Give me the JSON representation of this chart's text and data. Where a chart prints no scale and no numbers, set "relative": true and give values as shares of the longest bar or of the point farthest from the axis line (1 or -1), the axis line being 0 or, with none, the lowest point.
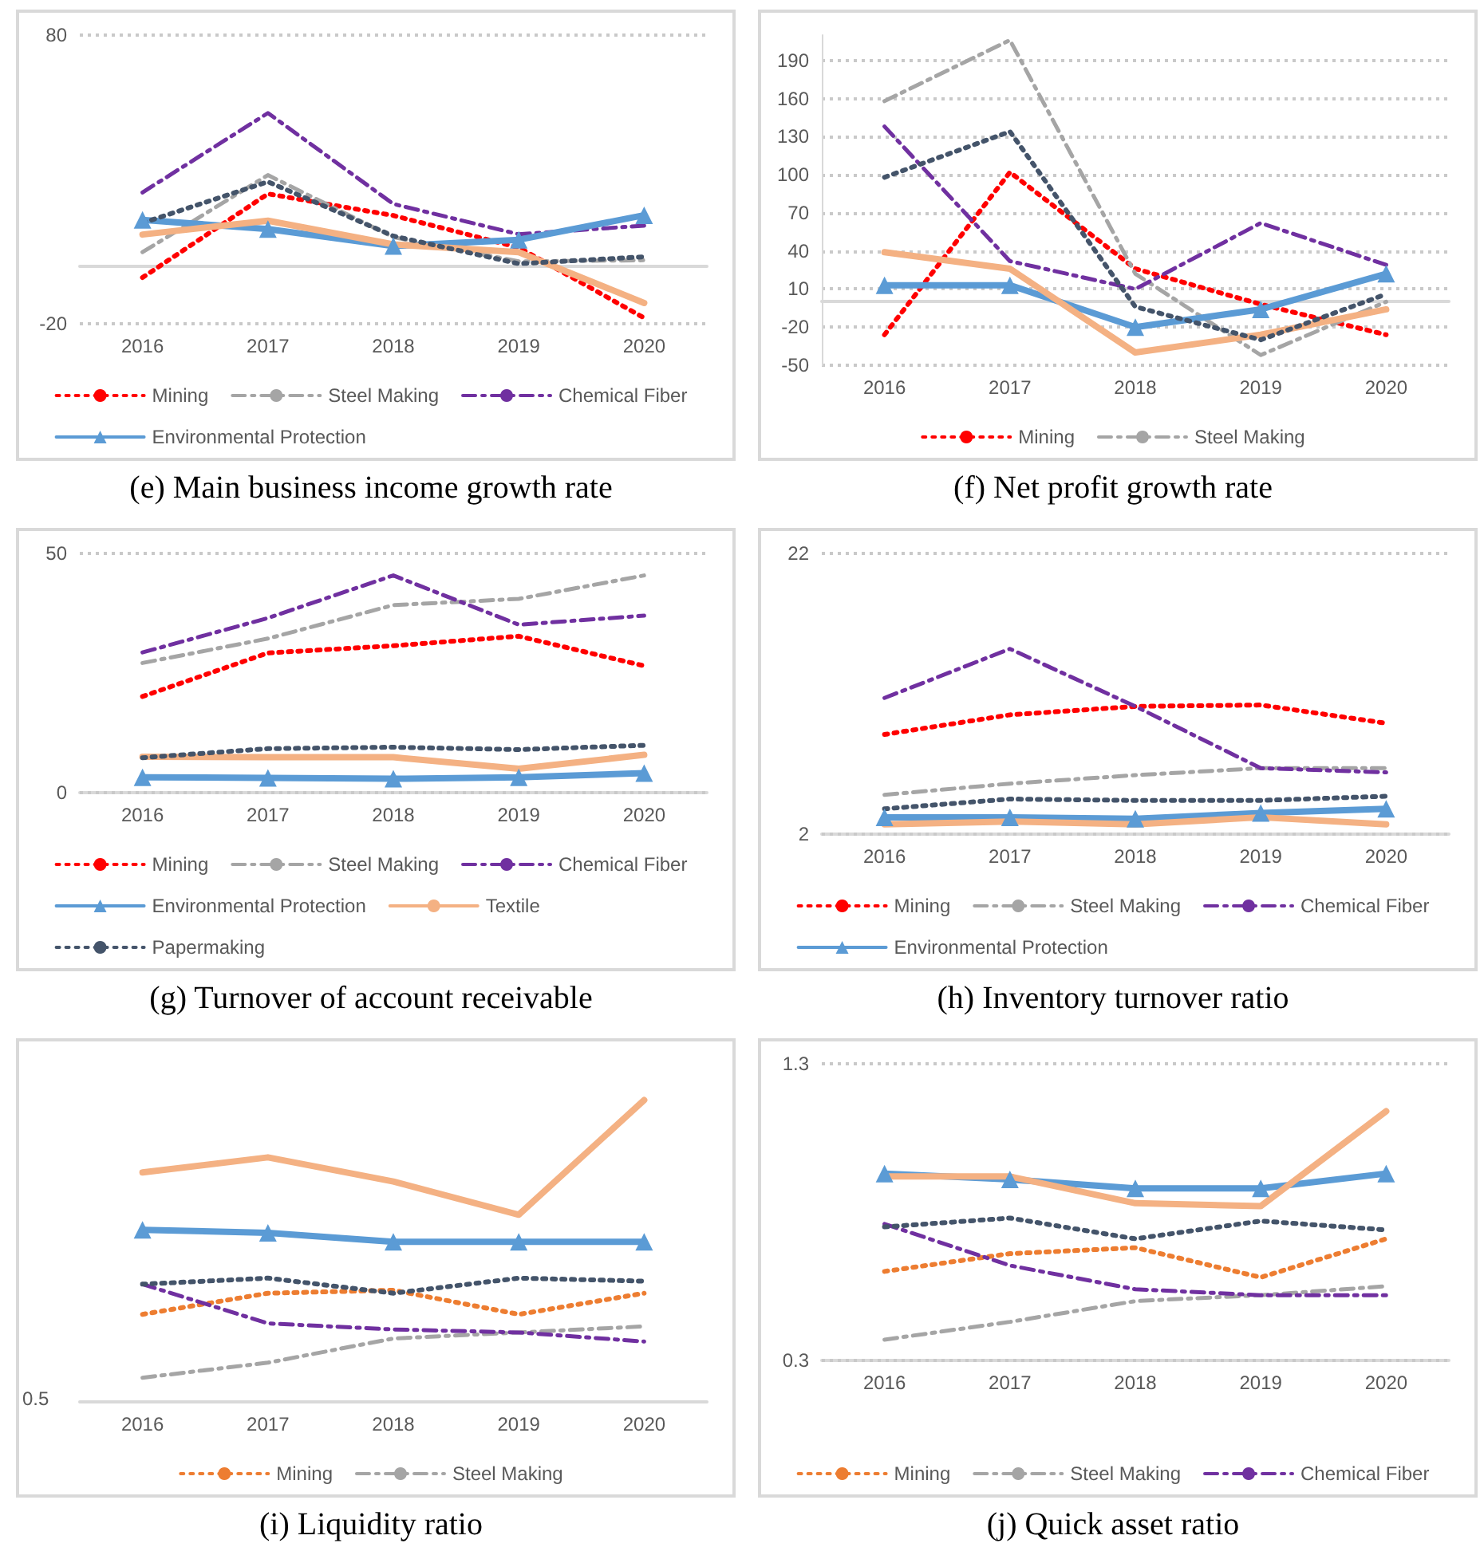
{
  "chart_data": [
    {
      "type": "line",
      "title": "(e) Main business income growth rate",
      "categories": [
        "2016",
        "2017",
        "2018",
        "2019",
        "2020"
      ],
      "ylim": [
        -20,
        80
      ],
      "yticks": [
        -20,
        80
      ],
      "grid": "y",
      "legend": "bottom",
      "series": [
        {
          "name": "Mining",
          "color": "#ff0000",
          "line_style": "dotted",
          "values": [
            -4,
            25,
            17.5,
            6.4,
            -18
          ]
        },
        {
          "name": "Steel Making",
          "color": "#a5a5a5",
          "line_style": "dashed",
          "values": [
            4.8,
            31.5,
            10,
            1.6,
            2
          ]
        },
        {
          "name": "Chemical Fiber",
          "color": "#7030a0",
          "line_style": "dashed",
          "values": [
            25.5,
            53,
            21.5,
            11,
            14
          ]
        },
        {
          "name": "Environmental Protection",
          "color": "#5b9bd5",
          "line_style": "solid",
          "marker": "triangle",
          "values": [
            16,
            12.8,
            6.9,
            9.1,
            17.6
          ]
        },
        {
          "color": "#f4b183",
          "line_style": "solid",
          "values": [
            10.9,
            15.7,
            7.5,
            4.8,
            -12.8
          ]
        },
        {
          "color": "#44546a",
          "line_style": "dotted",
          "values": [
            14.9,
            29.2,
            10.4,
            0.8,
            3.2
          ]
        }
      ]
    },
    {
      "type": "line",
      "title": "(f) Net profit growth rate",
      "categories": [
        "2016",
        "2017",
        "2018",
        "2019",
        "2020"
      ],
      "ylim": [
        -50,
        210
      ],
      "yticks": [
        -50,
        -20,
        10,
        40,
        70,
        100,
        130,
        160,
        190
      ],
      "grid": "y",
      "legend": "bottom",
      "series": [
        {
          "name": "Mining",
          "color": "#ff0000",
          "line_style": "dotted",
          "values": [
            -26,
            102,
            26,
            -2,
            -26
          ]
        },
        {
          "name": "Steel Making",
          "color": "#a5a5a5",
          "line_style": "dashed",
          "values": [
            158,
            206,
            22,
            -42,
            0
          ]
        },
        {
          "color": "#7030a0",
          "line_style": "dashed",
          "values": [
            138,
            32,
            10,
            62,
            29
          ]
        },
        {
          "color": "#5b9bd5",
          "line_style": "solid",
          "marker": "triangle",
          "values": [
            13,
            13,
            -20,
            -6,
            22
          ]
        },
        {
          "color": "#f4b183",
          "line_style": "solid",
          "values": [
            39,
            26,
            -40,
            -26,
            -6
          ]
        },
        {
          "color": "#44546a",
          "line_style": "dotted",
          "values": [
            98,
            134,
            -4,
            -30,
            6
          ]
        }
      ]
    },
    {
      "type": "line",
      "title": "(g) Turnover of account receivable",
      "categories": [
        "2016",
        "2017",
        "2018",
        "2019",
        "2020"
      ],
      "ylim": [
        0,
        50
      ],
      "yticks": [
        0,
        50
      ],
      "grid": "y",
      "legend": "bottom",
      "series": [
        {
          "name": "Mining",
          "color": "#ff0000",
          "line_style": "dotted",
          "values": [
            20.1,
            29.2,
            30.7,
            32.7,
            26.5
          ]
        },
        {
          "name": "Steel Making",
          "color": "#a5a5a5",
          "line_style": "dashed",
          "values": [
            27.1,
            32.2,
            39.2,
            40.5,
            45.4
          ]
        },
        {
          "name": "Chemical Fiber",
          "color": "#7030a0",
          "line_style": "dashed",
          "values": [
            29.3,
            36.5,
            45.4,
            35.1,
            37
          ]
        },
        {
          "name": "Environmental Protection",
          "color": "#5b9bd5",
          "line_style": "solid",
          "marker": "triangle",
          "values": [
            3.2,
            3.1,
            2.9,
            3.2,
            4.1
          ]
        },
        {
          "name": "Textile",
          "color": "#f4b183",
          "line_style": "solid",
          "values": [
            7.5,
            7.4,
            7.4,
            5,
            7.9
          ]
        },
        {
          "name": "Papermaking",
          "color": "#44546a",
          "line_style": "dotted",
          "values": [
            7.3,
            9.2,
            9.5,
            9,
            9.9
          ]
        }
      ]
    },
    {
      "type": "line",
      "title": "(h) Inventory turnover ratio",
      "categories": [
        "2016",
        "2017",
        "2018",
        "2019",
        "2020"
      ],
      "ylim": [
        2,
        22
      ],
      "yticks": [
        2,
        22
      ],
      "grid": "y",
      "legend": "bottom",
      "series": [
        {
          "name": "Mining",
          "color": "#ff0000",
          "line_style": "dotted",
          "values": [
            9.1,
            10.5,
            11.1,
            11.2,
            9.9
          ]
        },
        {
          "name": "Steel Making",
          "color": "#a5a5a5",
          "line_style": "dashed",
          "values": [
            4.8,
            5.6,
            6.2,
            6.7,
            6.7
          ]
        },
        {
          "name": "Chemical Fiber",
          "color": "#7030a0",
          "line_style": "dashed",
          "values": [
            11.7,
            15.2,
            11.1,
            6.7,
            6.4
          ]
        },
        {
          "name": "Environmental Protection",
          "color": "#5b9bd5",
          "line_style": "solid",
          "marker": "triangle",
          "values": [
            3.2,
            3.2,
            3.1,
            3.5,
            3.8
          ]
        },
        {
          "color": "#f4b183",
          "line_style": "solid",
          "values": [
            2.7,
            2.9,
            2.7,
            3.2,
            2.7
          ]
        },
        {
          "color": "#44546a",
          "line_style": "dotted",
          "values": [
            3.8,
            4.5,
            4.4,
            4.4,
            4.7
          ]
        }
      ]
    },
    {
      "type": "line",
      "title": "(i) Liquidity ratio",
      "categories": [
        "2016",
        "2017",
        "2018",
        "2019",
        "2020"
      ],
      "relative": true,
      "annotations": [
        "0.5"
      ],
      "legend": "bottom",
      "series": [
        {
          "name": "Mining",
          "color": "#ed7d31",
          "line_style": "dotted",
          "values": [
            0.29,
            0.36,
            0.37,
            0.29,
            0.36
          ]
        },
        {
          "name": "Steel Making",
          "color": "#a5a5a5",
          "line_style": "dashed",
          "values": [
            0.08,
            0.13,
            0.21,
            0.23,
            0.25
          ]
        },
        {
          "color": "#7030a0",
          "line_style": "dashed",
          "values": [
            0.39,
            0.26,
            0.24,
            0.23,
            0.2
          ]
        },
        {
          "color": "#5b9bd5",
          "line_style": "solid",
          "marker": "triangle",
          "values": [
            0.57,
            0.56,
            0.53,
            0.53,
            0.53
          ]
        },
        {
          "color": "#f4b183",
          "line_style": "solid",
          "values": [
            0.76,
            0.81,
            0.73,
            0.62,
            1
          ]
        },
        {
          "color": "#44546a",
          "line_style": "dotted",
          "values": [
            0.39,
            0.41,
            0.36,
            0.41,
            0.4
          ]
        }
      ]
    },
    {
      "type": "line",
      "title": "(j) Quick asset ratio",
      "categories": [
        "2016",
        "2017",
        "2018",
        "2019",
        "2020"
      ],
      "ylim": [
        0.3,
        1.3
      ],
      "yticks": [
        0.3,
        1.3
      ],
      "grid": "y",
      "legend": "bottom",
      "series": [
        {
          "name": "Mining",
          "color": "#ed7d31",
          "line_style": "dotted",
          "values": [
            0.6,
            0.66,
            0.68,
            0.58,
            0.71
          ]
        },
        {
          "name": "Steel Making",
          "color": "#a5a5a5",
          "line_style": "dashed",
          "values": [
            0.37,
            0.43,
            0.5,
            0.52,
            0.55
          ]
        },
        {
          "name": "Chemical Fiber",
          "color": "#7030a0",
          "line_style": "dashed",
          "values": [
            0.76,
            0.62,
            0.54,
            0.52,
            0.52
          ]
        },
        {
          "color": "#5b9bd5",
          "line_style": "solid",
          "marker": "triangle",
          "values": [
            0.93,
            0.91,
            0.88,
            0.88,
            0.93
          ]
        },
        {
          "color": "#f4b183",
          "line_style": "solid",
          "values": [
            0.92,
            0.92,
            0.83,
            0.82,
            1.14
          ]
        },
        {
          "color": "#44546a",
          "line_style": "dotted",
          "values": [
            0.75,
            0.78,
            0.71,
            0.77,
            0.74
          ]
        }
      ]
    }
  ]
}
